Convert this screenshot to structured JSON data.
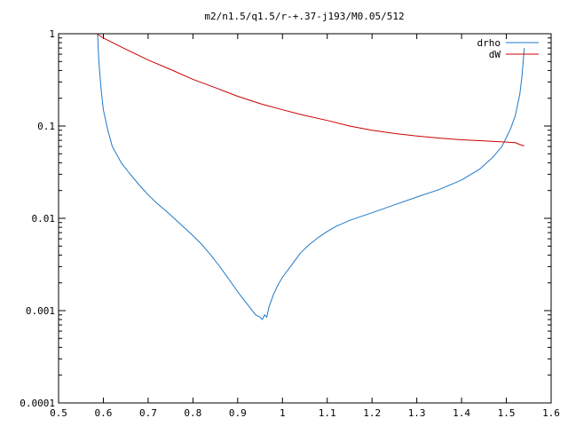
{
  "chart_data": {
    "type": "line",
    "title": "m2/n1.5/q1.5/r-+.37-j193/M0.05/512",
    "xlabel": "",
    "ylabel": "",
    "xlim": [
      0.5,
      1.6
    ],
    "ylim": [
      0.0001,
      1
    ],
    "y_scale": "log",
    "grid": false,
    "legend_position": "top-right",
    "x_tick_labels": [
      "0.5",
      "0.6",
      "0.7",
      "0.8",
      "0.9",
      "1",
      "1.1",
      "1.2",
      "1.3",
      "1.4",
      "1.5",
      "1.6"
    ],
    "x_tick_values": [
      0.5,
      0.6,
      0.7,
      0.8,
      0.9,
      1.0,
      1.1,
      1.2,
      1.3,
      1.4,
      1.5,
      1.6
    ],
    "y_tick_labels": [
      "0.0001",
      "0.001",
      "0.01",
      "0.1",
      "1"
    ],
    "y_tick_values": [
      0.0001,
      0.001,
      0.01,
      0.1,
      1
    ],
    "series": [
      {
        "name": "drho",
        "color": "#1f78c8",
        "x": [
          0.587,
          0.59,
          0.595,
          0.6,
          0.61,
          0.62,
          0.64,
          0.66,
          0.68,
          0.7,
          0.72,
          0.74,
          0.76,
          0.78,
          0.8,
          0.82,
          0.84,
          0.86,
          0.88,
          0.9,
          0.92,
          0.94,
          0.95,
          0.955,
          0.96,
          0.965,
          0.97,
          0.98,
          0.99,
          1.0,
          1.02,
          1.04,
          1.06,
          1.08,
          1.1,
          1.12,
          1.15,
          1.2,
          1.25,
          1.3,
          1.35,
          1.4,
          1.44,
          1.47,
          1.49,
          1.5,
          1.51,
          1.52,
          1.53,
          1.535,
          1.54
        ],
        "y": [
          1.0,
          0.5,
          0.25,
          0.15,
          0.09,
          0.06,
          0.04,
          0.03,
          0.023,
          0.018,
          0.0145,
          0.012,
          0.0098,
          0.008,
          0.0065,
          0.0052,
          0.004,
          0.003,
          0.0022,
          0.0016,
          0.0012,
          0.0009,
          0.00085,
          0.0008,
          0.0009,
          0.00085,
          0.0011,
          0.0015,
          0.0019,
          0.0023,
          0.0031,
          0.0042,
          0.0052,
          0.0062,
          0.0072,
          0.0082,
          0.0095,
          0.0115,
          0.014,
          0.017,
          0.0205,
          0.026,
          0.034,
          0.046,
          0.06,
          0.075,
          0.095,
          0.13,
          0.22,
          0.35,
          0.7
        ]
      },
      {
        "name": "dW",
        "color": "#cc0000",
        "x": [
          0.585,
          0.6,
          0.65,
          0.7,
          0.75,
          0.8,
          0.85,
          0.9,
          0.95,
          1.0,
          1.05,
          1.1,
          1.15,
          1.2,
          1.25,
          1.3,
          1.35,
          1.4,
          1.45,
          1.5,
          1.52,
          1.53,
          1.54
        ],
        "y": [
          1.0,
          0.9,
          0.68,
          0.52,
          0.41,
          0.32,
          0.26,
          0.21,
          0.175,
          0.15,
          0.13,
          0.115,
          0.1,
          0.09,
          0.083,
          0.078,
          0.074,
          0.071,
          0.069,
          0.067,
          0.066,
          0.063,
          0.061
        ]
      }
    ]
  }
}
